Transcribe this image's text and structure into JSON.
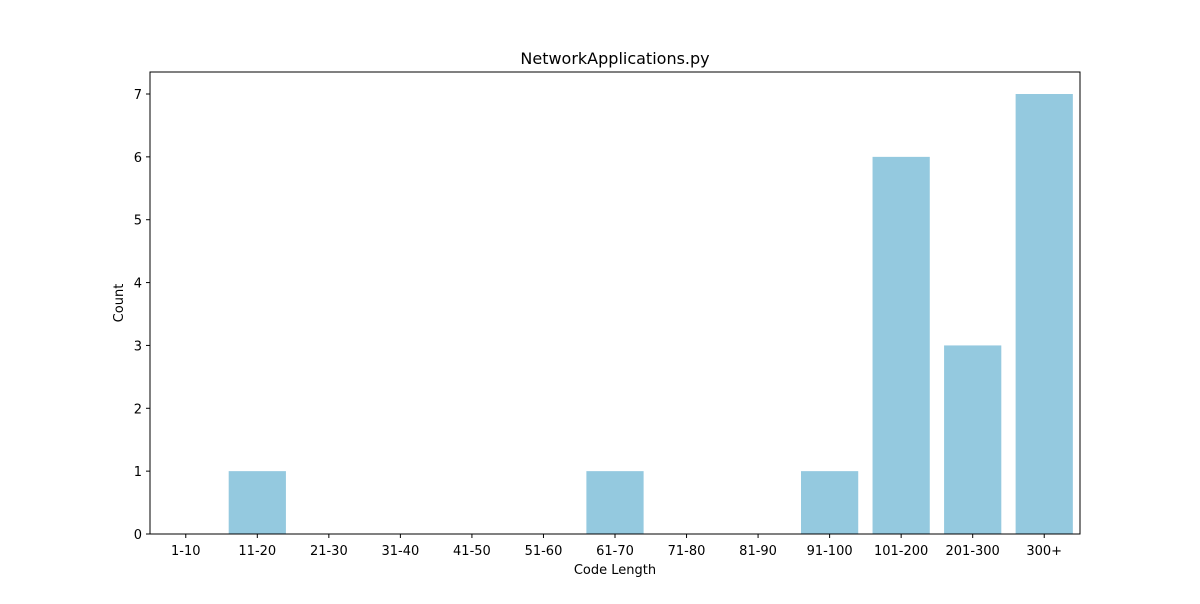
{
  "chart_data": {
    "type": "bar",
    "title": "NetworkApplications.py",
    "xlabel": "Code Length",
    "ylabel": "Count",
    "categories": [
      "1-10",
      "11-20",
      "21-30",
      "31-40",
      "41-50",
      "51-60",
      "61-70",
      "71-80",
      "81-90",
      "91-100",
      "101-200",
      "201-300",
      "300+"
    ],
    "values": [
      0,
      1,
      0,
      0,
      0,
      0,
      1,
      0,
      0,
      1,
      6,
      3,
      7
    ],
    "ylim": [
      0,
      7.35
    ],
    "yticks": [
      "0",
      "1",
      "2",
      "3",
      "4",
      "5",
      "6",
      "7"
    ],
    "grid": false,
    "legend": "none",
    "colors": {
      "bar": "#94c9df",
      "axis": "#000000",
      "background": "#ffffff"
    }
  }
}
